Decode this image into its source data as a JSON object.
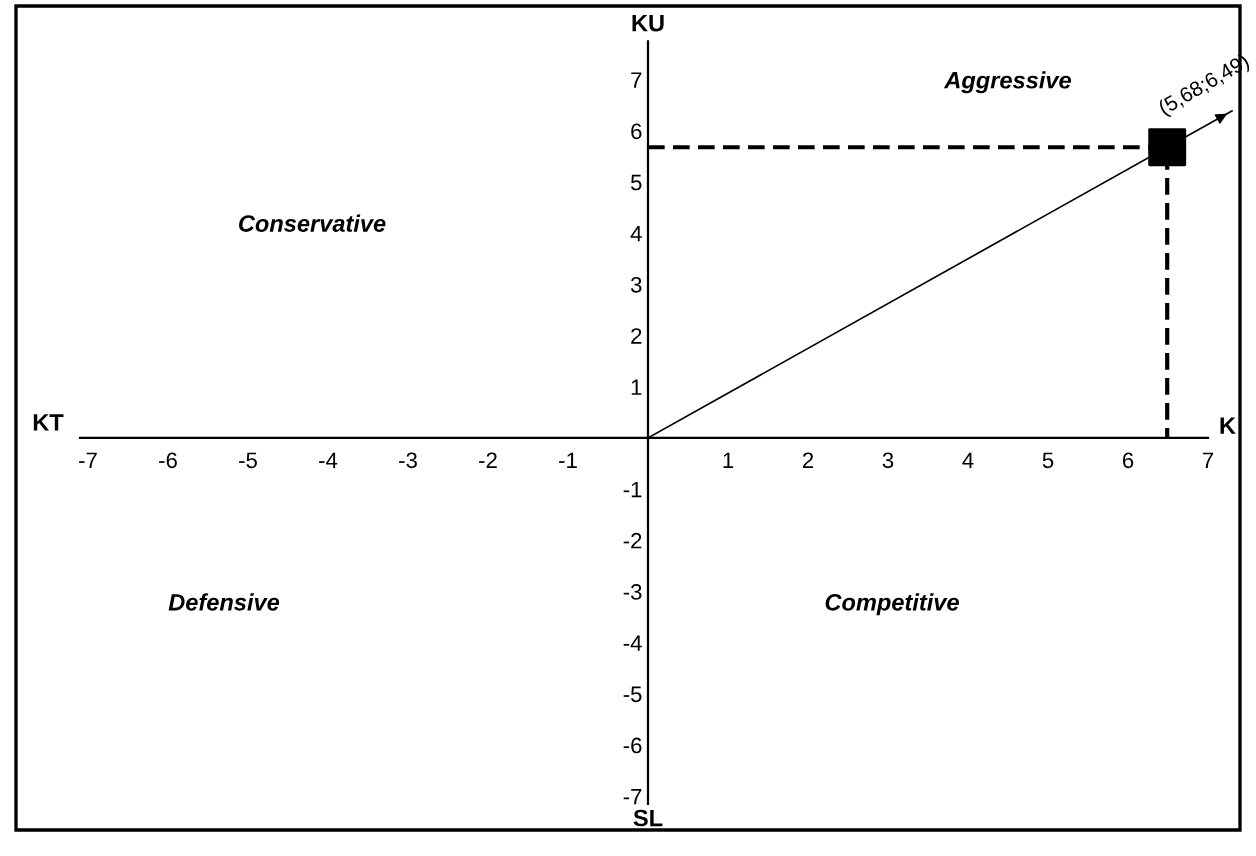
{
  "chart_data": {
    "type": "scatter",
    "xlabel": "K",
    "ylabel": "KU",
    "xlim": [
      -7.9,
      7.4
    ],
    "ylim": [
      -7.66,
      8.44
    ],
    "xticks": [
      -7,
      -6,
      -5,
      -4,
      -3,
      -2,
      -1,
      1,
      2,
      3,
      4,
      5,
      6,
      7
    ],
    "yticks": [
      -7,
      -6,
      -5,
      -4,
      -3,
      -2,
      -1,
      1,
      2,
      3,
      4,
      5,
      6,
      7
    ],
    "grid": false,
    "legend": false,
    "marker": "square",
    "series": [
      {
        "type": "line",
        "color": "#000000",
        "x": [
          0,
          7.3
        ],
        "values": [
          0,
          6.39
        ],
        "marker": "none",
        "line_style": "solid"
      },
      {
        "type": "line",
        "color": "#000000",
        "x": [
          0,
          6.49,
          6.49
        ],
        "values": [
          5.68,
          5.68,
          0
        ],
        "marker": "none",
        "line_style": "dashed"
      },
      {
        "color": "#000000",
        "x": [
          6.49
        ],
        "values": [
          5.68
        ]
      }
    ],
    "annotations": [
      {
        "text": "(5,68;6,49)",
        "x": 6.49,
        "y": 5.68
      },
      "Aggressive",
      "Conservative",
      "Defensive",
      "Competitive",
      "KT",
      "SL"
    ]
  }
}
